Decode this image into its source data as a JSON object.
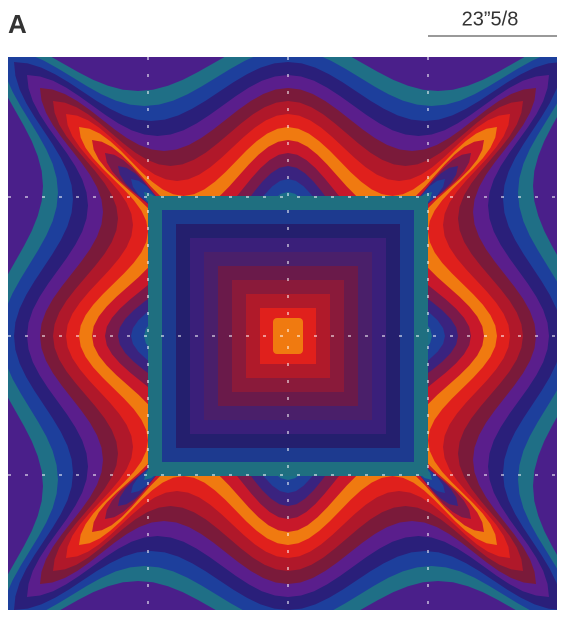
{
  "label": {
    "letter": "A",
    "size": "23”5/8"
  }
}
